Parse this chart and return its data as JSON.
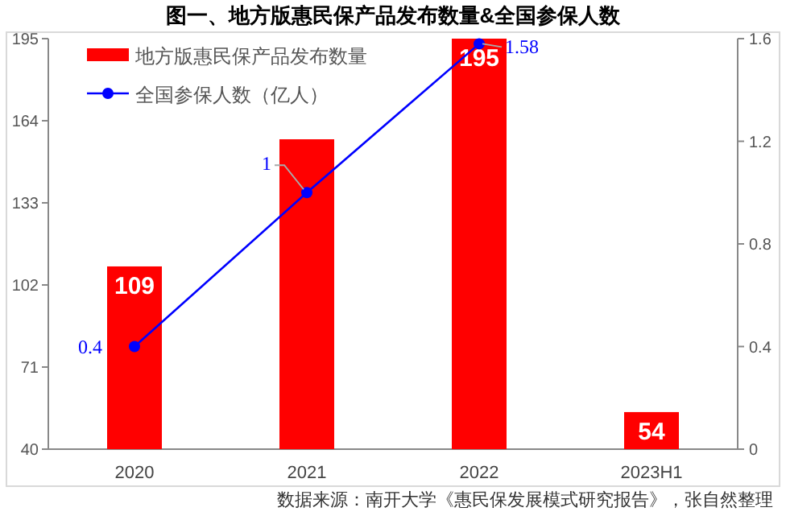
{
  "chart_data": {
    "type": "bar",
    "title": "图一、地方版惠民保产品发布数量&全国参保人数",
    "categories": [
      "2020",
      "2021",
      "2022",
      "2023H1"
    ],
    "series": [
      {
        "name": "地方版惠民保产品发布数量",
        "color": "#ff0000",
        "values": [
          109,
          157,
          195,
          54
        ],
        "value_labels": [
          "109",
          null,
          "195",
          "54"
        ]
      },
      {
        "name": "全国参保人数（亿人）",
        "type": "line",
        "axis": "y2",
        "color": "#0000ff",
        "marker": "circle",
        "values": [
          0.4,
          1,
          1.58,
          null
        ],
        "value_labels": [
          "0.4",
          "1",
          "1.58",
          null
        ]
      }
    ],
    "ylim": [
      40,
      195
    ],
    "yticks": [
      40,
      71,
      102,
      133,
      164,
      195
    ],
    "y2lim": [
      0,
      1.6
    ],
    "y2ticks": [
      0,
      0.4,
      0.8,
      1.2,
      1.6
    ],
    "legend": "top left",
    "grid": false,
    "annotations": [
      "数据来源：南开大学《惠民保发展模式研究报告》，张自然整理"
    ]
  }
}
